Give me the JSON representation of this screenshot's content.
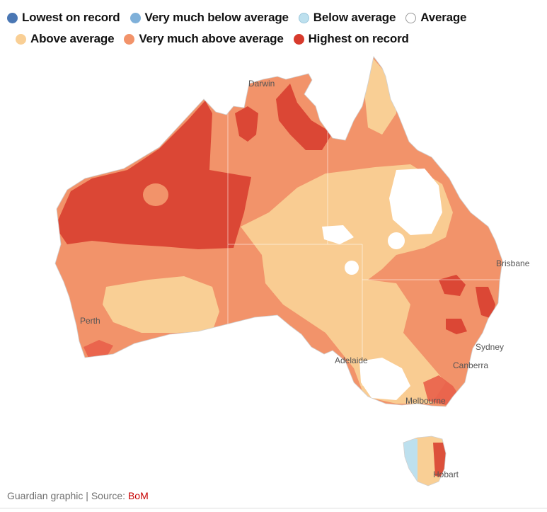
{
  "legend": {
    "items": [
      {
        "label": "Lowest on record",
        "color": "#4a77b4"
      },
      {
        "label": "Very much below average",
        "color": "#7fb0d9"
      },
      {
        "label": "Below average",
        "color": "#bde0ee"
      },
      {
        "label": "Average",
        "color": "#ffffff"
      },
      {
        "label": "Above average",
        "color": "#f9cf95"
      },
      {
        "label": "Very much above average",
        "color": "#f2936a"
      },
      {
        "label": "Highest on record",
        "color": "#d73a2c"
      }
    ]
  },
  "map": {
    "cities": [
      "Darwin",
      "Brisbane",
      "Perth",
      "Sydney",
      "Adelaide",
      "Canberra",
      "Melbourne",
      "Hobart"
    ]
  },
  "footer": {
    "text": "Guardian graphic | Source: ",
    "source_link": "BoM"
  }
}
